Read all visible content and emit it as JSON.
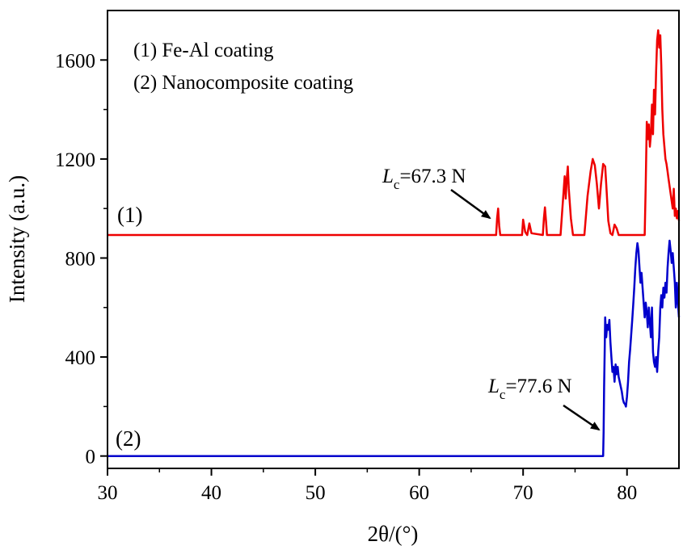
{
  "chart_data": {
    "type": "line",
    "xlabel": "2θ/(°)",
    "ylabel": "Intensity (a.u.)",
    "xlim": [
      30,
      85
    ],
    "ylim": [
      -50,
      1800
    ],
    "x_ticks": [
      30,
      40,
      50,
      60,
      70,
      80
    ],
    "y_ticks": [
      0,
      400,
      800,
      1200,
      1600
    ],
    "legend": {
      "position": "top-left",
      "entries": [
        "(1) Fe-Al coating",
        "(2) Nanocomposite coating"
      ]
    },
    "series": [
      {
        "name": "(1)",
        "color": "#ee0000",
        "points": [
          [
            30,
            893
          ],
          [
            67.4,
            893
          ],
          [
            67.5,
            960
          ],
          [
            67.6,
            1000
          ],
          [
            67.7,
            930
          ],
          [
            67.8,
            893
          ],
          [
            69.9,
            893
          ],
          [
            70.0,
            955
          ],
          [
            70.2,
            905
          ],
          [
            70.4,
            893
          ],
          [
            70.6,
            940
          ],
          [
            70.8,
            900
          ],
          [
            71.9,
            893
          ],
          [
            72.0,
            960
          ],
          [
            72.1,
            1005
          ],
          [
            72.2,
            950
          ],
          [
            72.3,
            893
          ],
          [
            73.6,
            893
          ],
          [
            73.8,
            1010
          ],
          [
            74.0,
            1130
          ],
          [
            74.1,
            1040
          ],
          [
            74.2,
            1120
          ],
          [
            74.3,
            1170
          ],
          [
            74.4,
            1080
          ],
          [
            74.6,
            960
          ],
          [
            74.8,
            893
          ],
          [
            75.9,
            893
          ],
          [
            76.2,
            1050
          ],
          [
            76.5,
            1150
          ],
          [
            76.7,
            1200
          ],
          [
            76.9,
            1175
          ],
          [
            77.1,
            1100
          ],
          [
            77.3,
            1000
          ],
          [
            77.5,
            1100
          ],
          [
            77.7,
            1180
          ],
          [
            77.9,
            1170
          ],
          [
            78.0,
            1100
          ],
          [
            78.2,
            950
          ],
          [
            78.4,
            900
          ],
          [
            78.6,
            893
          ],
          [
            78.8,
            935
          ],
          [
            79.0,
            920
          ],
          [
            79.2,
            893
          ],
          [
            81.7,
            893
          ],
          [
            81.8,
            1100
          ],
          [
            81.9,
            1350
          ],
          [
            82.0,
            1280
          ],
          [
            82.1,
            1340
          ],
          [
            82.2,
            1250
          ],
          [
            82.3,
            1300
          ],
          [
            82.4,
            1420
          ],
          [
            82.5,
            1300
          ],
          [
            82.6,
            1480
          ],
          [
            82.7,
            1380
          ],
          [
            82.8,
            1550
          ],
          [
            82.9,
            1680
          ],
          [
            83.0,
            1720
          ],
          [
            83.1,
            1650
          ],
          [
            83.2,
            1700
          ],
          [
            83.3,
            1580
          ],
          [
            83.4,
            1400
          ],
          [
            83.5,
            1300
          ],
          [
            83.6,
            1250
          ],
          [
            83.7,
            1200
          ],
          [
            83.8,
            1180
          ],
          [
            83.9,
            1150
          ],
          [
            84.0,
            1120
          ],
          [
            84.2,
            1060
          ],
          [
            84.4,
            1000
          ],
          [
            84.5,
            1080
          ],
          [
            84.6,
            970
          ],
          [
            84.7,
            1000
          ],
          [
            84.8,
            960
          ],
          [
            84.9,
            990
          ],
          [
            85.0,
            950
          ]
        ]
      },
      {
        "name": "(2)",
        "color": "#0000cc",
        "points": [
          [
            30,
            0
          ],
          [
            77.7,
            0
          ],
          [
            77.75,
            100
          ],
          [
            77.8,
            280
          ],
          [
            77.85,
            420
          ],
          [
            77.9,
            560
          ],
          [
            78.0,
            480
          ],
          [
            78.1,
            530
          ],
          [
            78.2,
            510
          ],
          [
            78.3,
            550
          ],
          [
            78.4,
            460
          ],
          [
            78.5,
            400
          ],
          [
            78.6,
            340
          ],
          [
            78.7,
            360
          ],
          [
            78.8,
            300
          ],
          [
            78.9,
            370
          ],
          [
            79.0,
            330
          ],
          [
            79.1,
            360
          ],
          [
            79.2,
            320
          ],
          [
            79.3,
            300
          ],
          [
            79.4,
            280
          ],
          [
            79.5,
            260
          ],
          [
            79.6,
            230
          ],
          [
            79.7,
            215
          ],
          [
            79.8,
            210
          ],
          [
            79.9,
            200
          ],
          [
            80.0,
            240
          ],
          [
            80.1,
            300
          ],
          [
            80.2,
            380
          ],
          [
            80.3,
            430
          ],
          [
            80.4,
            490
          ],
          [
            80.5,
            550
          ],
          [
            80.6,
            610
          ],
          [
            80.7,
            680
          ],
          [
            80.8,
            760
          ],
          [
            80.9,
            820
          ],
          [
            81.0,
            860
          ],
          [
            81.1,
            830
          ],
          [
            81.2,
            760
          ],
          [
            81.3,
            700
          ],
          [
            81.4,
            740
          ],
          [
            81.5,
            680
          ],
          [
            81.6,
            620
          ],
          [
            81.7,
            560
          ],
          [
            81.8,
            620
          ],
          [
            81.9,
            580
          ],
          [
            82.0,
            520
          ],
          [
            82.1,
            600
          ],
          [
            82.2,
            540
          ],
          [
            82.3,
            480
          ],
          [
            82.4,
            600
          ],
          [
            82.5,
            420
          ],
          [
            82.6,
            380
          ],
          [
            82.7,
            360
          ],
          [
            82.8,
            400
          ],
          [
            82.9,
            340
          ],
          [
            83.0,
            420
          ],
          [
            83.1,
            480
          ],
          [
            83.2,
            600
          ],
          [
            83.3,
            650
          ],
          [
            83.4,
            600
          ],
          [
            83.5,
            680
          ],
          [
            83.6,
            640
          ],
          [
            83.7,
            700
          ],
          [
            83.8,
            660
          ],
          [
            83.9,
            760
          ],
          [
            84.0,
            820
          ],
          [
            84.1,
            870
          ],
          [
            84.2,
            830
          ],
          [
            84.3,
            780
          ],
          [
            84.4,
            820
          ],
          [
            84.5,
            760
          ],
          [
            84.6,
            700
          ],
          [
            84.7,
            600
          ],
          [
            84.8,
            700
          ],
          [
            84.9,
            620
          ],
          [
            85.0,
            560
          ]
        ]
      }
    ],
    "annotations": [
      {
        "text_main": "L",
        "text_sub": "c",
        "text_rest": "=67.3 N",
        "arrow_to": [
          67.5,
          930
        ]
      },
      {
        "text_main": "L",
        "text_sub": "c",
        "text_rest": "=77.6 N",
        "arrow_to": [
          77.75,
          100
        ]
      }
    ],
    "series_tags": [
      "(1)",
      "(2)"
    ]
  }
}
